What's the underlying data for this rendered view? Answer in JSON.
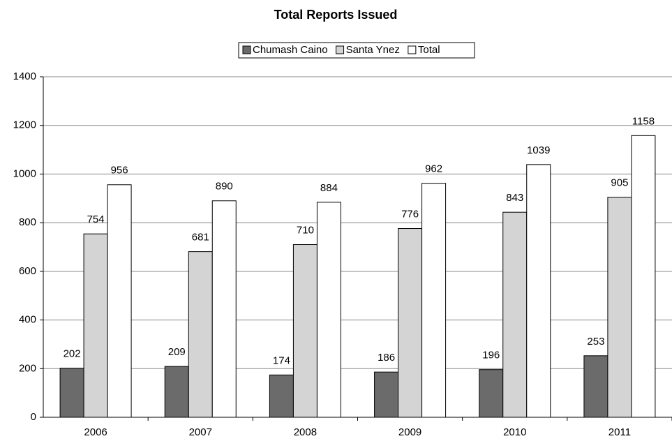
{
  "chart_data": {
    "type": "bar",
    "title": "Total Reports Issued",
    "categories": [
      "2006",
      "2007",
      "2008",
      "2009",
      "2010",
      "2011"
    ],
    "series": [
      {
        "name": "Chumash Caino",
        "color": "#6b6b6b",
        "values": [
          202,
          209,
          174,
          186,
          196,
          253
        ]
      },
      {
        "name": "Santa Ynez",
        "color": "#d4d4d4",
        "values": [
          754,
          681,
          710,
          776,
          843,
          905
        ]
      },
      {
        "name": "Total",
        "color": "#ffffff",
        "values": [
          956,
          890,
          884,
          962,
          1039,
          1158
        ]
      }
    ],
    "ylim": [
      0,
      1400
    ],
    "yticks": [
      0,
      200,
      400,
      600,
      800,
      1000,
      1200,
      1400
    ],
    "grid": true,
    "legend": "top"
  }
}
